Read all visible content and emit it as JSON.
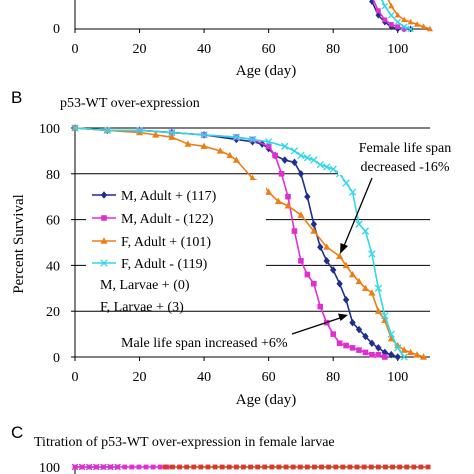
{
  "panel_top": {
    "xticks": [
      "0",
      "20",
      "40",
      "60",
      "80",
      "100"
    ],
    "ytick_zero": "0",
    "xlabel": "Age (day)",
    "partial_series": [
      {
        "color": "#1f2f8f",
        "marker": "diamond",
        "x": [
          88,
          90,
          92,
          94,
          96,
          98,
          100,
          102,
          104
        ],
        "y": [
          24,
          18,
          12,
          6,
          3,
          1,
          0,
          0,
          0
        ]
      },
      {
        "color": "#e02fd0",
        "marker": "square",
        "x": [
          90,
          92,
          94,
          96,
          98,
          100,
          102
        ],
        "y": [
          22,
          14,
          8,
          4,
          2,
          1,
          0
        ]
      },
      {
        "color": "#f07d14",
        "marker": "triangle",
        "x": [
          94,
          96,
          98,
          100,
          102,
          104,
          106,
          108,
          110
        ],
        "y": [
          22,
          16,
          10,
          6,
          4,
          3,
          2,
          1,
          0
        ]
      },
      {
        "color": "#2fd8e8",
        "marker": "cross",
        "x": [
          92,
          94,
          96,
          98,
          100,
          102,
          104
        ],
        "y": [
          22,
          16,
          10,
          6,
          3,
          1,
          0
        ]
      }
    ]
  },
  "panel_b": {
    "letter": "B",
    "title": "p53-WT over-expression",
    "ylabel": "Percent Survival",
    "xlabel": "Age (day)",
    "annotation_female": [
      "Female life span",
      "decreased -16%"
    ],
    "annotation_male": "Male life span increased +6%",
    "legend_extra": [
      "M, Larvae + (0)",
      "F, Larvae + (3)"
    ]
  },
  "panel_c": {
    "letter": "C",
    "title": "Titration of p53-WT over-expression in female larvae",
    "ytick_top": "100"
  },
  "chart_data": {
    "type": "line",
    "title": "p53-WT over-expression",
    "xlabel": "Age (day)",
    "ylabel": "Percent Survival",
    "xlim": [
      0,
      110
    ],
    "ylim": [
      0,
      100
    ],
    "xticks": [
      0,
      20,
      40,
      60,
      80,
      100
    ],
    "yticks": [
      0,
      20,
      40,
      60,
      80,
      100
    ],
    "grid": "horizontal",
    "legend_position": "left",
    "series": [
      {
        "name": "M, Adult + (117)",
        "color": "#1f2f8f",
        "marker": "diamond",
        "x": [
          0,
          10,
          20,
          30,
          40,
          50,
          55,
          58,
          60,
          62,
          65,
          68,
          70,
          72,
          74,
          76,
          78,
          80,
          82,
          84,
          86,
          88,
          90,
          92,
          94,
          96,
          98,
          100
        ],
        "y": [
          100,
          99,
          99,
          98,
          97,
          95,
          94,
          93,
          91,
          88,
          86,
          85,
          80,
          70,
          58,
          48,
          42,
          38,
          32,
          25,
          15,
          12,
          9,
          6,
          4,
          2,
          1,
          0
        ]
      },
      {
        "name": "M, Adult - (122)",
        "color": "#e02fd0",
        "marker": "square",
        "x": [
          0,
          10,
          20,
          30,
          40,
          50,
          55,
          60,
          62,
          64,
          66,
          68,
          70,
          72,
          74,
          76,
          78,
          80,
          82,
          84,
          86,
          88,
          90,
          92,
          94,
          96
        ],
        "y": [
          100,
          99,
          99,
          98,
          97,
          96,
          95,
          92,
          88,
          80,
          70,
          55,
          42,
          36,
          32,
          22,
          15,
          10,
          6,
          5,
          4,
          3,
          2,
          1,
          1,
          0
        ]
      },
      {
        "name": "F, Adult + (101)",
        "color": "#f07d14",
        "marker": "triangle",
        "x": [
          0,
          10,
          20,
          25,
          30,
          35,
          40,
          45,
          48,
          50,
          55,
          58,
          60,
          63,
          66,
          70,
          74,
          78,
          82,
          84,
          86,
          88,
          90,
          92,
          94,
          96,
          98,
          100,
          102,
          104,
          106,
          108
        ],
        "y": [
          100,
          99,
          98,
          97,
          96,
          93,
          92,
          90,
          88,
          86,
          78,
          76,
          72,
          68,
          66,
          62,
          55,
          48,
          44,
          40,
          36,
          33,
          30,
          28,
          20,
          16,
          8,
          5,
          3,
          2,
          1,
          0
        ]
      },
      {
        "name": "F, Adult - (119)",
        "color": "#2fd8e8",
        "marker": "cross",
        "x": [
          0,
          10,
          20,
          30,
          40,
          50,
          55,
          60,
          65,
          68,
          70,
          72,
          74,
          76,
          78,
          80,
          82,
          84,
          86,
          88,
          90,
          92,
          94,
          96,
          98,
          100,
          102
        ],
        "y": [
          100,
          99,
          99,
          98,
          97,
          96,
          95,
          94,
          92,
          90,
          88,
          87,
          86,
          84,
          83,
          82,
          80,
          76,
          72,
          58,
          55,
          45,
          30,
          18,
          10,
          4,
          0
        ]
      }
    ]
  }
}
